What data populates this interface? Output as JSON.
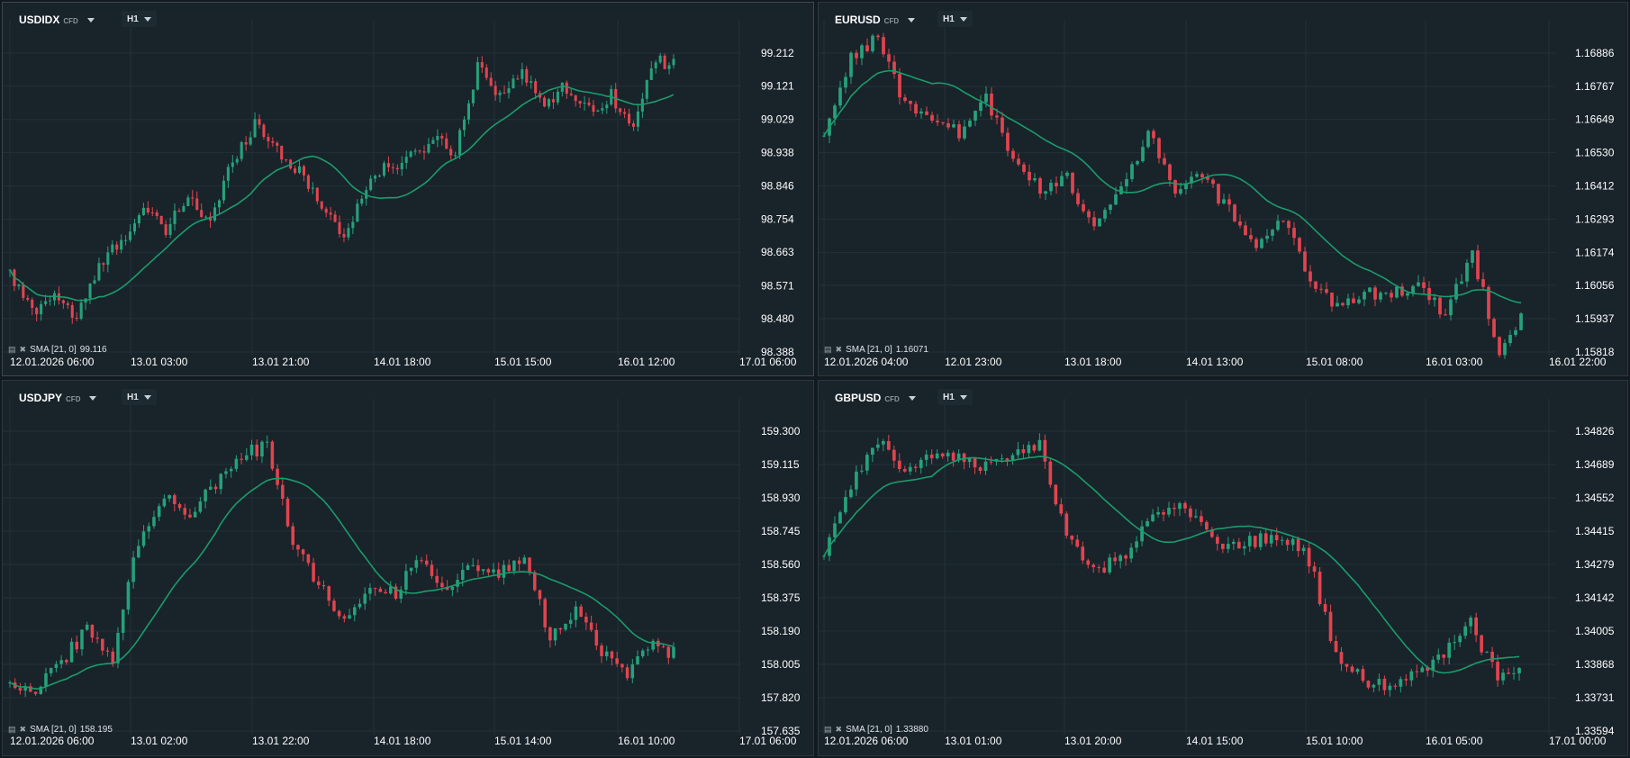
{
  "colors": {
    "up": "#26a17b",
    "down": "#e0444f",
    "sma": "#1a9c6c",
    "grid": "#223039",
    "text": "#ffffff"
  },
  "icons": [
    "hide-indicator-icon",
    "close-indicator-icon"
  ],
  "panels": [
    {
      "symbol": "USDIDX",
      "badge": "CFD",
      "timeframe": "H1",
      "indicator": "SMA [21, 0]",
      "indicator_value": "99.116",
      "y_ticks": [
        "99.212",
        "99.121",
        "99.029",
        "98.938",
        "98.846",
        "98.754",
        "98.663",
        "98.571",
        "98.480",
        "98.388"
      ],
      "x_ticks": [
        "12.01.2026  06:00",
        "13.01  03:00",
        "13.01  21:00",
        "14.01  18:00",
        "15.01  15:00",
        "16.01  12:00",
        "17.01  06:00"
      ]
    },
    {
      "symbol": "EURUSD",
      "badge": "CFD",
      "timeframe": "H1",
      "indicator": "SMA [21, 0]",
      "indicator_value": "1.16071",
      "y_ticks": [
        "1.16886",
        "1.16767",
        "1.16649",
        "1.16530",
        "1.16412",
        "1.16293",
        "1.16174",
        "1.16056",
        "1.15937",
        "1.15818"
      ],
      "x_ticks": [
        "12.01.2026  04:00",
        "12.01  23:00",
        "13.01  18:00",
        "14.01  13:00",
        "15.01  08:00",
        "16.01  03:00",
        "16.01  22:00"
      ]
    },
    {
      "symbol": "USDJPY",
      "badge": "CFD",
      "timeframe": "H1",
      "indicator": "SMA [21, 0]",
      "indicator_value": "158.195",
      "y_ticks": [
        "159.300",
        "159.115",
        "158.930",
        "158.745",
        "158.560",
        "158.375",
        "158.190",
        "158.005",
        "157.820",
        "157.635"
      ],
      "x_ticks": [
        "12.01.2026  06:00",
        "13.01  02:00",
        "13.01  22:00",
        "14.01  18:00",
        "15.01  14:00",
        "16.01  10:00",
        "17.01  06:00"
      ]
    },
    {
      "symbol": "GBPUSD",
      "badge": "CFD",
      "timeframe": "H1",
      "indicator": "SMA [21, 0]",
      "indicator_value": "1.33880",
      "y_ticks": [
        "1.34826",
        "1.34689",
        "1.34552",
        "1.34415",
        "1.34279",
        "1.34142",
        "1.34005",
        "1.33868",
        "1.33731",
        "1.33594"
      ],
      "x_ticks": [
        "12.01.2026  06:00",
        "13.01  01:00",
        "13.01  20:00",
        "14.01  15:00",
        "15.01  10:00",
        "16.01  05:00",
        "17.01  00:00"
      ]
    }
  ],
  "chart_data": [
    {
      "type": "candlestick",
      "title": "USDIDX",
      "ylim": [
        98.388,
        99.212
      ],
      "sma_period": 21,
      "anchors": [
        98.6,
        98.5,
        98.55,
        98.48,
        98.62,
        98.7,
        98.78,
        98.72,
        98.82,
        98.74,
        98.92,
        99.02,
        98.95,
        98.88,
        98.8,
        98.7,
        98.85,
        98.9,
        98.92,
        98.98,
        98.94,
        99.18,
        99.1,
        99.15,
        99.08,
        99.12,
        99.05,
        99.1,
        99.0,
        99.2,
        99.17
      ]
    },
    {
      "type": "candlestick",
      "title": "EURUSD",
      "ylim": [
        1.15818,
        1.16886
      ],
      "sma_period": 21,
      "anchors": [
        1.1658,
        1.1688,
        1.1694,
        1.167,
        1.1665,
        1.166,
        1.1672,
        1.165,
        1.164,
        1.1645,
        1.1625,
        1.164,
        1.166,
        1.164,
        1.1645,
        1.1632,
        1.162,
        1.163,
        1.1606,
        1.1598,
        1.1604,
        1.1602,
        1.1607,
        1.1595,
        1.1617,
        1.1582,
        1.1599
      ]
    },
    {
      "type": "candlestick",
      "title": "USDJPY",
      "ylim": [
        157.635,
        159.3
      ],
      "sma_period": 21,
      "anchors": [
        157.9,
        157.88,
        158.02,
        158.2,
        158.05,
        158.7,
        158.92,
        158.85,
        159.02,
        159.16,
        159.22,
        158.7,
        158.45,
        158.25,
        158.45,
        158.4,
        158.62,
        158.4,
        158.55,
        158.5,
        158.6,
        158.15,
        158.3,
        158.08,
        157.95,
        158.12,
        158.05
      ]
    },
    {
      "type": "candlestick",
      "title": "GBPUSD",
      "ylim": [
        1.33594,
        1.34826
      ],
      "sma_period": 21,
      "anchors": [
        1.3432,
        1.346,
        1.3478,
        1.3468,
        1.3472,
        1.3474,
        1.3468,
        1.3474,
        1.3476,
        1.344,
        1.3425,
        1.343,
        1.3445,
        1.3452,
        1.3447,
        1.3434,
        1.3438,
        1.344,
        1.343,
        1.339,
        1.338,
        1.3378,
        1.3382,
        1.3392,
        1.3404,
        1.338,
        1.3384
      ]
    }
  ]
}
